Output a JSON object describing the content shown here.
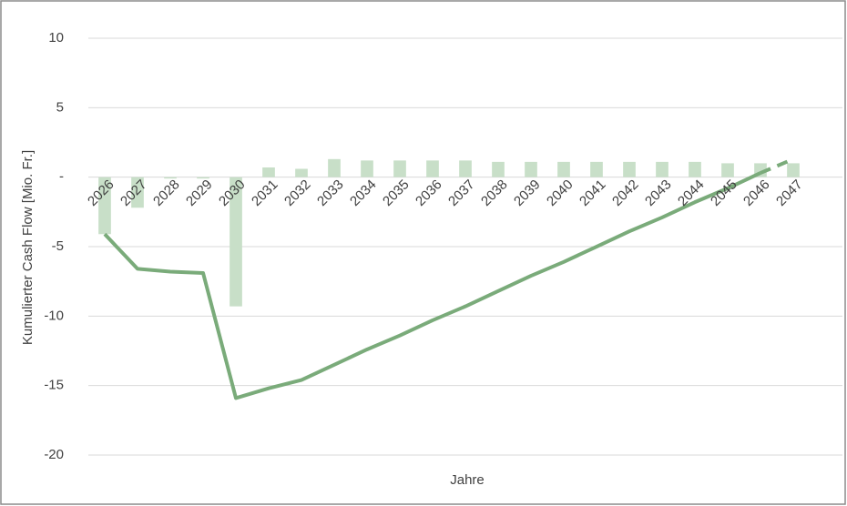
{
  "chart_data": {
    "type": "bar_line",
    "y_label": "Kumulierter Cash Flow [Mio. Fr.]",
    "x_label": "Jahre",
    "categories": [
      "2026",
      "2027",
      "2028",
      "2029",
      "2030",
      "2031",
      "2032",
      "2033",
      "2034",
      "2035",
      "2036",
      "2037",
      "2038",
      "2039",
      "2040",
      "2041",
      "2042",
      "2043",
      "2044",
      "2045",
      "2046",
      "2047"
    ],
    "series": [
      {
        "type": "bar",
        "color": "#c8dfc8",
        "values": [
          -4.1,
          -2.2,
          -0.1,
          -0.1,
          -9.3,
          0.7,
          0.6,
          1.3,
          1.2,
          1.2,
          1.2,
          1.2,
          1.1,
          1.1,
          1.1,
          1.1,
          1.1,
          1.1,
          1.1,
          1.0,
          1.0,
          1.0
        ]
      },
      {
        "type": "line",
        "color": "#7aab7a",
        "dash_from": "2046",
        "values": [
          -4.1,
          -6.6,
          -6.8,
          -6.9,
          -15.9,
          -15.2,
          -14.6,
          -13.5,
          -12.4,
          -11.4,
          -10.3,
          -9.3,
          -8.2,
          -7.1,
          -6.1,
          -5.0,
          -3.9,
          -2.9,
          -1.8,
          -0.8,
          0.3,
          1.3
        ]
      }
    ],
    "ylim": [
      -20,
      10
    ],
    "yticks": [
      -20,
      -15,
      -10,
      -5,
      {
        "value": 0,
        "label": "-"
      },
      5,
      10
    ],
    "grid": true
  }
}
